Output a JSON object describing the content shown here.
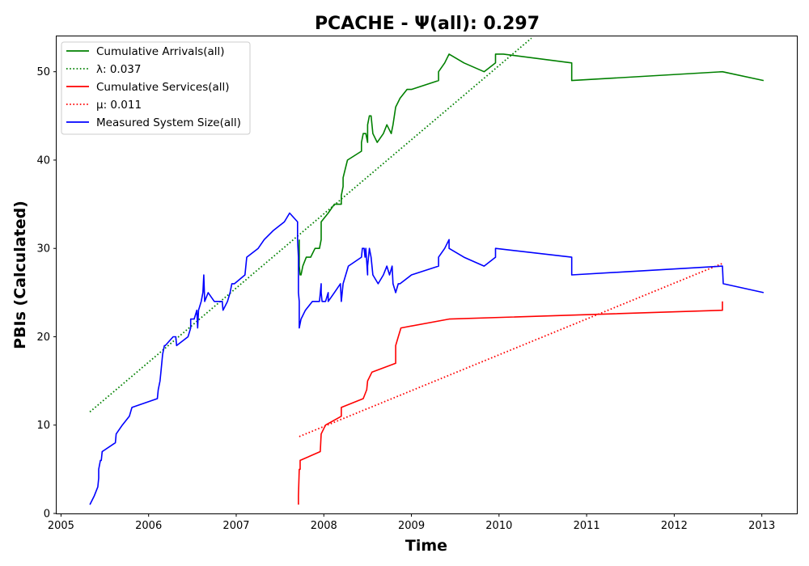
{
  "chart_data": {
    "type": "line",
    "title": "PCACHE -  Ψ(all): 0.297",
    "xlabel": "Time",
    "ylabel": "PBIs (Calculated)",
    "xlim": [
      2004.95,
      2013.4
    ],
    "ylim": [
      0,
      54
    ],
    "grid": false,
    "legend_position": "top-left",
    "x_ticks": [
      2005,
      2006,
      2007,
      2008,
      2009,
      2010,
      2011,
      2012,
      2013
    ],
    "x_tick_labels": [
      "2005",
      "2006",
      "2007",
      "2008",
      "2009",
      "2010",
      "2011",
      "2012",
      "2013"
    ],
    "y_ticks": [
      0,
      10,
      20,
      30,
      40,
      50
    ],
    "y_tick_labels": [
      "0",
      "10",
      "20",
      "30",
      "40",
      "50"
    ],
    "series": [
      {
        "name": "Cumulative Arrivals(all)",
        "color": "#008000",
        "style": "solid",
        "x": [
          2007.72,
          2007.72,
          2007.73,
          2007.74,
          2007.76,
          2007.8,
          2007.85,
          2007.9,
          2007.95,
          2007.97,
          2007.97,
          2008.05,
          2008.12,
          2008.2,
          2008.2,
          2008.22,
          2008.22,
          2008.27,
          2008.43,
          2008.43,
          2008.45,
          2008.48,
          2008.5,
          2008.5,
          2008.52,
          2008.54,
          2008.56,
          2008.61,
          2008.68,
          2008.72,
          2008.77,
          2008.79,
          2008.82,
          2008.87,
          2008.95,
          2009.0,
          2009.31,
          2009.31,
          2009.38,
          2009.43,
          2009.6,
          2009.83,
          2009.96,
          2009.96,
          2010.05,
          2010.83,
          2010.83,
          2012.55,
          2013.02
        ],
        "y": [
          31,
          28,
          27,
          27,
          28,
          29,
          29,
          30,
          30,
          31,
          33,
          34,
          35,
          35,
          36,
          37,
          38,
          40,
          41,
          42,
          43,
          43,
          42,
          44,
          45,
          45,
          43,
          42,
          43,
          44,
          43,
          44,
          46,
          47,
          48,
          48,
          49,
          50,
          51,
          52,
          51,
          50,
          51,
          52,
          52,
          51,
          49,
          50,
          49
        ]
      },
      {
        "name": "λ: 0.037",
        "color": "#008000",
        "style": "dotted",
        "x": [
          2005.33,
          2010.37
        ],
        "y": [
          11.5,
          53.8
        ]
      },
      {
        "name": "Cumulative Services(all)",
        "color": "#ff0000",
        "style": "solid",
        "x": [
          2007.71,
          2007.71,
          2007.72,
          2007.73,
          2007.73,
          2007.96,
          2007.97,
          2008.02,
          2008.2,
          2008.2,
          2008.45,
          2008.49,
          2008.5,
          2008.55,
          2008.82,
          2008.82,
          2008.85,
          2008.88,
          2009.43,
          2012.55,
          2012.55
        ],
        "y": [
          1,
          2,
          5,
          5,
          6,
          7,
          9,
          10,
          11,
          12,
          13,
          14,
          15,
          16,
          17,
          19,
          20,
          21,
          22,
          23,
          24
        ]
      },
      {
        "name": "μ: 0.011",
        "color": "#ff0000",
        "style": "dotted",
        "x": [
          2007.72,
          2012.55
        ],
        "y": [
          8.7,
          28.3
        ]
      },
      {
        "name": "Measured System Size(all)",
        "color": "#0000ff",
        "style": "solid",
        "x": [
          2005.33,
          2005.38,
          2005.42,
          2005.43,
          2005.43,
          2005.45,
          2005.46,
          2005.47,
          2005.62,
          2005.63,
          2005.7,
          2005.78,
          2005.81,
          2006.1,
          2006.11,
          2006.13,
          2006.14,
          2006.16,
          2006.18,
          2006.19,
          2006.28,
          2006.31,
          2006.32,
          2006.45,
          2006.48,
          2006.48,
          2006.52,
          2006.55,
          2006.56,
          2006.57,
          2006.6,
          2006.62,
          2006.63,
          2006.64,
          2006.68,
          2006.75,
          2006.84,
          2006.85,
          2006.9,
          2006.93,
          2006.95,
          2006.98,
          2007.1,
          2007.12,
          2007.25,
          2007.32,
          2007.42,
          2007.55,
          2007.61,
          2007.7,
          2007.7,
          2007.71,
          2007.71,
          2007.72,
          2007.72,
          2007.74,
          2007.74,
          2007.79,
          2007.87,
          2007.95,
          2007.97,
          2007.97,
          2007.98,
          2008.02,
          2008.05,
          2008.05,
          2008.12,
          2008.19,
          2008.2,
          2008.21,
          2008.22,
          2008.22,
          2008.28,
          2008.43,
          2008.44,
          2008.46,
          2008.47,
          2008.48,
          2008.5,
          2008.5,
          2008.52,
          2008.54,
          2008.56,
          2008.62,
          2008.68,
          2008.72,
          2008.75,
          2008.78,
          2008.79,
          2008.82,
          2008.85,
          2008.87,
          2008.87,
          2009.0,
          2009.31,
          2009.31,
          2009.38,
          2009.43,
          2009.43,
          2009.6,
          2009.83,
          2009.96,
          2009.96,
          2010.83,
          2010.83,
          2012.55,
          2012.55,
          2012.56,
          2013.02
        ],
        "y": [
          1,
          2,
          3,
          4,
          5,
          6,
          6,
          7,
          8,
          9,
          10,
          11,
          12,
          13,
          14,
          15,
          16,
          18,
          19,
          19,
          20,
          20,
          19,
          20,
          21,
          22,
          22,
          23,
          21,
          23,
          24,
          25,
          27,
          24,
          25,
          24,
          24,
          23,
          24,
          25,
          26,
          26,
          27,
          29,
          30,
          31,
          32,
          33,
          34,
          33,
          31,
          29,
          25,
          24,
          21,
          22,
          22,
          23,
          24,
          24,
          26,
          25,
          24,
          24,
          25,
          24,
          25,
          26,
          24,
          25,
          26,
          26,
          28,
          29,
          30,
          30,
          29,
          30,
          27,
          28,
          30,
          29,
          27,
          26,
          27,
          28,
          27,
          28,
          26,
          25,
          26,
          26,
          26,
          27,
          28,
          29,
          30,
          31,
          30,
          29,
          28,
          29,
          30,
          29,
          27,
          28,
          28,
          26,
          25
        ]
      }
    ]
  }
}
